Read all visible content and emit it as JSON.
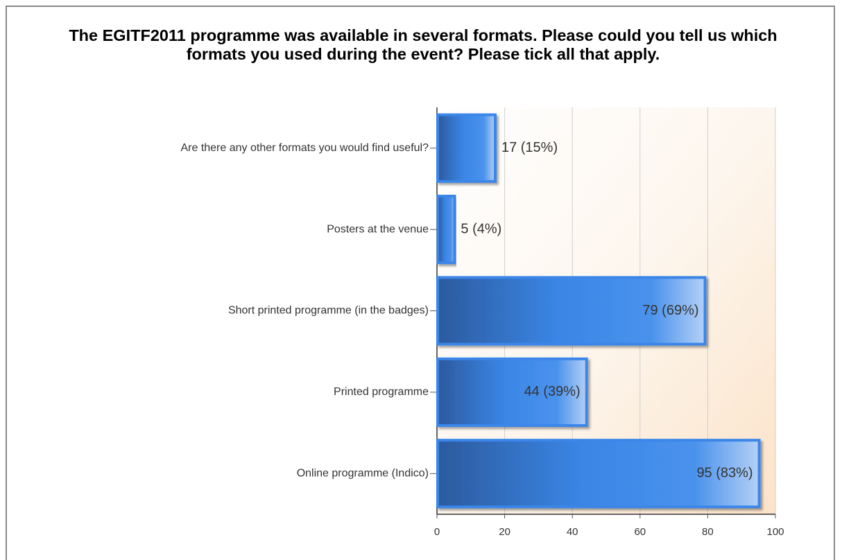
{
  "chart_data": {
    "type": "bar",
    "orientation": "horizontal",
    "title": "The EGITF2011 programme was available in several formats. Please could you tell us which formats you used during the event? Please tick all that apply.",
    "categories": [
      "Are there any other formats you would find useful?",
      "Posters at the venue",
      "Short printed programme (in the badges)",
      "Printed programme",
      "Online programme (Indico)"
    ],
    "values": [
      17,
      5,
      79,
      44,
      95
    ],
    "value_labels": [
      "17 (15%)",
      "5 (4%)",
      "79 (69%)",
      "44 (39%)",
      "95 (83%)"
    ],
    "color": "#3b86e8",
    "xlim": [
      0,
      100
    ],
    "xticks": [
      0,
      20,
      40,
      60,
      80,
      100
    ],
    "grid": true
  }
}
